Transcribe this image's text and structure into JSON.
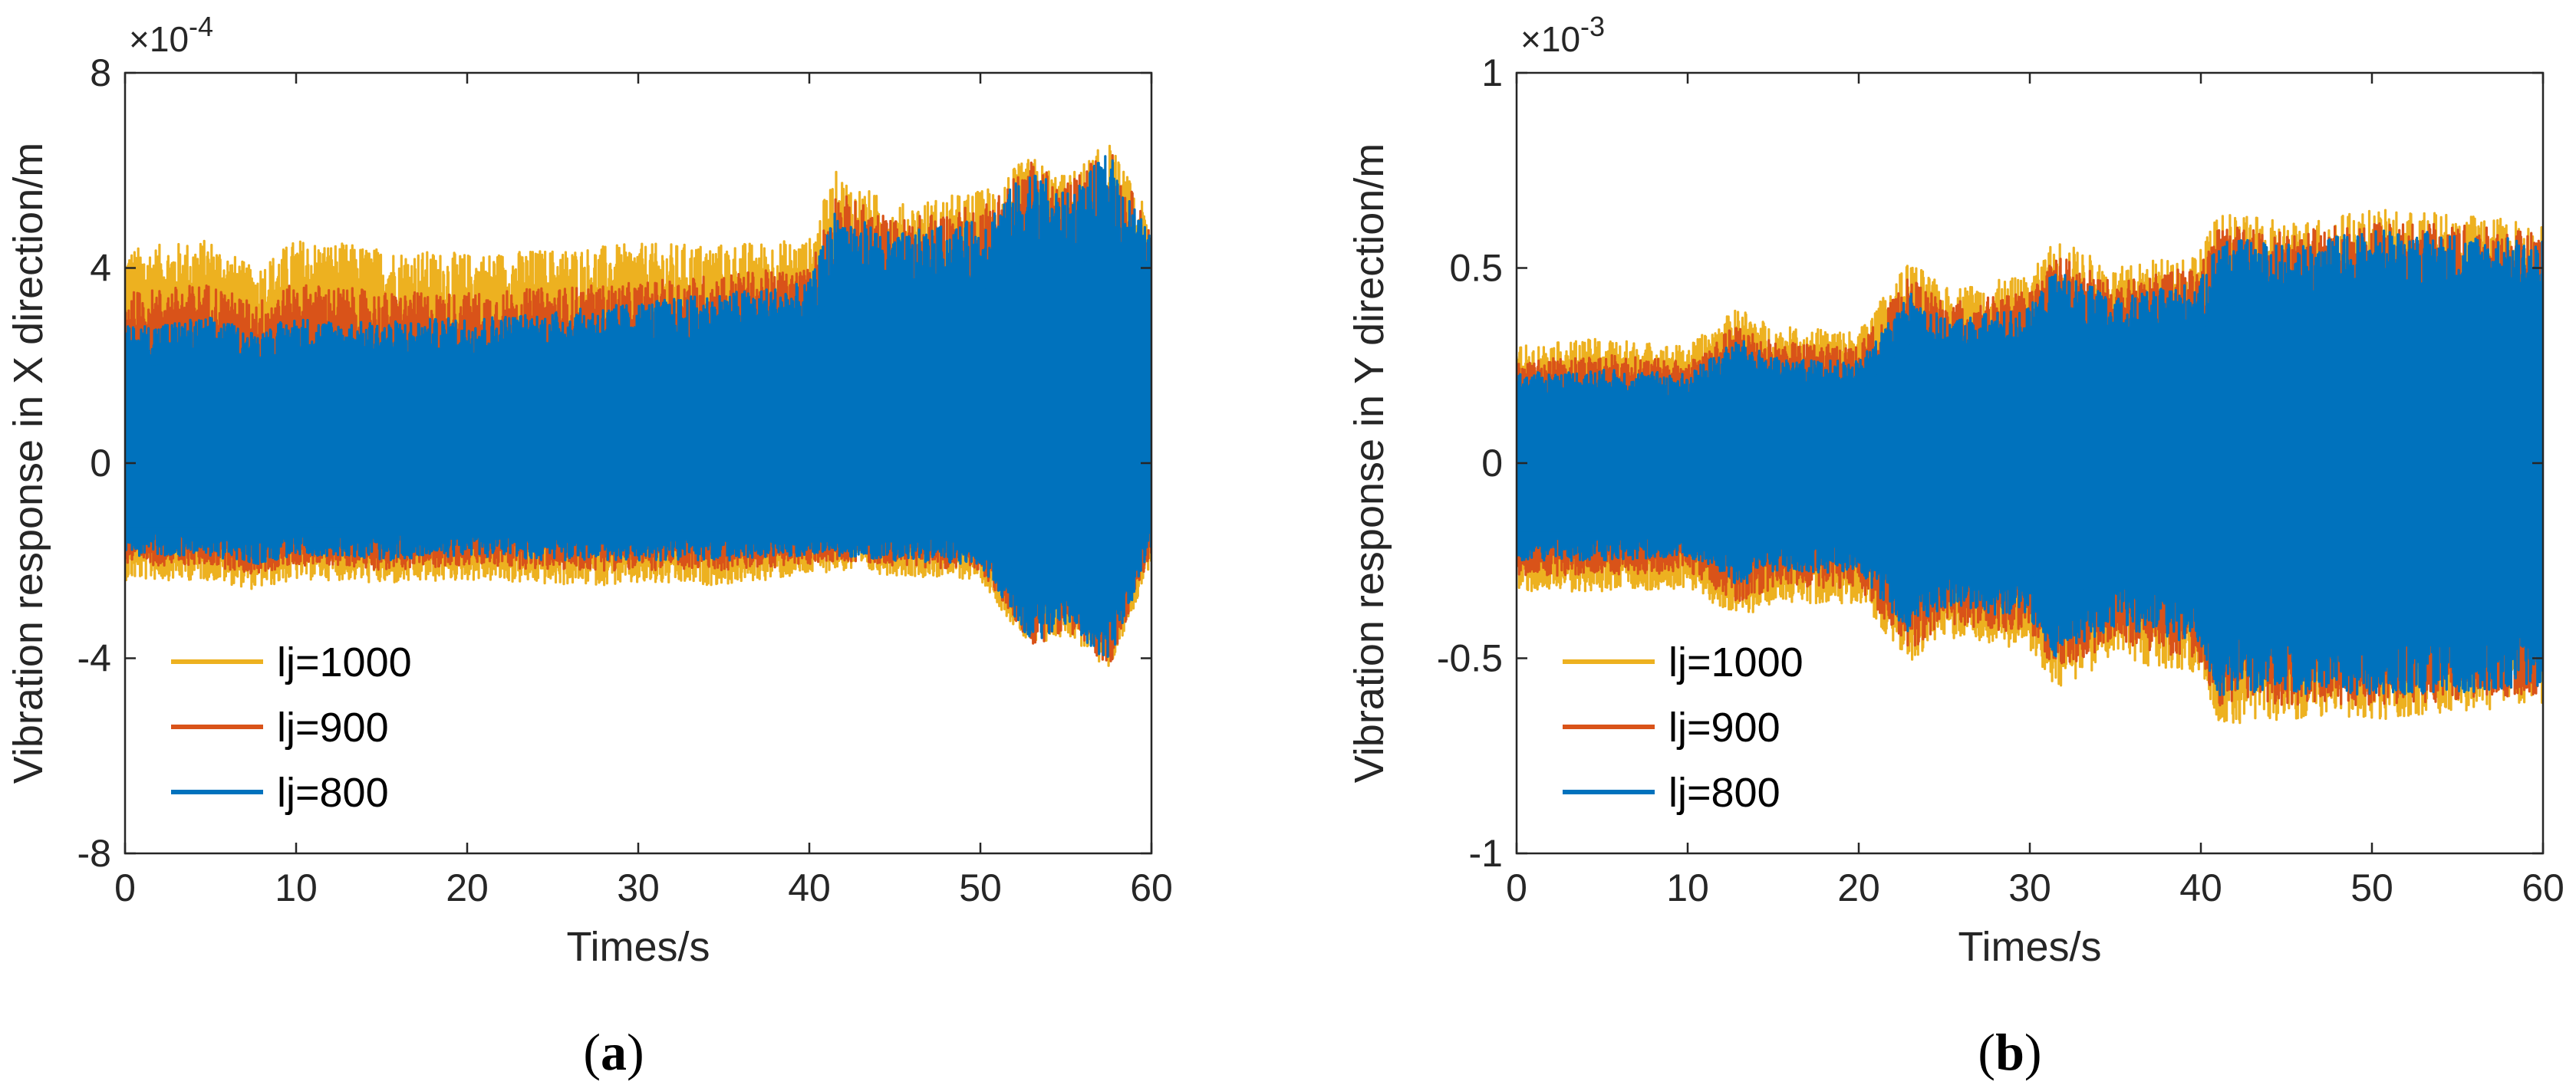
{
  "chart_data": [
    {
      "type": "line",
      "panel_label": "(a)",
      "caption_letter": "a",
      "xlabel": "Times/s",
      "ylabel": "Vibration response in X direction/m",
      "xlim": [
        0,
        60
      ],
      "ylim": [
        -8,
        8
      ],
      "x_ticks": [
        "0",
        "10",
        "20",
        "30",
        "40",
        "50",
        "60"
      ],
      "y_ticks": [
        "-8",
        "-4",
        "0",
        "4",
        "8"
      ],
      "exponent_text": "×10",
      "exponent_power": "-4",
      "legend_position": "bottom-left",
      "series": [
        {
          "name": "lj=1000",
          "color": "#EDB120",
          "envelope_x": [
            0,
            5,
            7.5,
            10,
            13,
            15,
            20,
            25,
            30,
            35,
            40,
            41.5,
            45,
            50,
            53,
            55,
            57.5,
            60
          ],
          "upper": [
            4.4,
            4.6,
            4.0,
            4.6,
            4.5,
            4.4,
            4.3,
            4.4,
            4.5,
            4.5,
            4.6,
            6.0,
            5.3,
            5.6,
            6.3,
            5.9,
            6.6,
            5.0
          ],
          "lower": [
            -2.4,
            -2.4,
            -2.6,
            -2.4,
            -2.4,
            -2.5,
            -2.4,
            -2.5,
            -2.5,
            -2.5,
            -2.3,
            -2.2,
            -2.3,
            -2.4,
            -3.9,
            -3.5,
            -4.3,
            -2.0
          ]
        },
        {
          "name": "lj=900",
          "color": "#D95319",
          "envelope_x": [
            0,
            5,
            7.5,
            10,
            13,
            15,
            20,
            25,
            30,
            35,
            40,
            41.5,
            45,
            50,
            53,
            55,
            57.5,
            60
          ],
          "upper": [
            3.5,
            3.7,
            3.3,
            3.7,
            3.6,
            3.5,
            3.5,
            3.6,
            3.7,
            3.9,
            4.0,
            5.6,
            5.0,
            5.3,
            6.2,
            5.7,
            6.5,
            4.8
          ],
          "lower": [
            -2.1,
            -2.1,
            -2.3,
            -2.1,
            -2.1,
            -2.2,
            -2.1,
            -2.2,
            -2.2,
            -2.2,
            -2.1,
            -2.0,
            -2.1,
            -2.2,
            -3.8,
            -3.4,
            -4.2,
            -1.8
          ]
        },
        {
          "name": "lj=800",
          "color": "#0072BD",
          "envelope_x": [
            0,
            5,
            7.5,
            10,
            13,
            15,
            20,
            25,
            30,
            35,
            40,
            41.5,
            45,
            50,
            53,
            55,
            57.5,
            60
          ],
          "upper": [
            2.8,
            3.0,
            2.7,
            3.0,
            2.9,
            2.9,
            3.0,
            3.1,
            3.3,
            3.5,
            3.7,
            5.2,
            4.7,
            5.0,
            6.1,
            5.5,
            6.4,
            4.6
          ],
          "lower": [
            -1.9,
            -1.9,
            -2.1,
            -1.9,
            -1.9,
            -2.0,
            -1.9,
            -2.0,
            -2.0,
            -2.0,
            -1.9,
            -1.9,
            -2.0,
            -2.1,
            -3.7,
            -3.3,
            -4.1,
            -1.7
          ]
        }
      ]
    },
    {
      "type": "line",
      "panel_label": "(b)",
      "caption_letter": "b",
      "xlabel": "Times/s",
      "ylabel": "Vibration response in Y direction/m",
      "xlim": [
        0,
        60
      ],
      "ylim": [
        -1,
        1
      ],
      "x_ticks": [
        "0",
        "10",
        "20",
        "30",
        "40",
        "50",
        "60"
      ],
      "y_ticks": [
        "-1",
        "-0.5",
        "0",
        "0.5",
        "1"
      ],
      "exponent_text": "×10",
      "exponent_power": "-3",
      "legend_position": "bottom-left",
      "series": [
        {
          "name": "lj=1000",
          "color": "#EDB120",
          "envelope_x": [
            0,
            5,
            10,
            13,
            15,
            20,
            23,
            25,
            30,
            31.5,
            35,
            40,
            41,
            45,
            50,
            55,
            60
          ],
          "upper": [
            0.3,
            0.32,
            0.3,
            0.4,
            0.35,
            0.34,
            0.52,
            0.45,
            0.48,
            0.58,
            0.5,
            0.55,
            0.64,
            0.62,
            0.65,
            0.64,
            0.62
          ],
          "lower": [
            -0.33,
            -0.33,
            -0.32,
            -0.4,
            -0.36,
            -0.36,
            -0.52,
            -0.45,
            -0.48,
            -0.58,
            -0.5,
            -0.55,
            -0.67,
            -0.66,
            -0.66,
            -0.64,
            -0.62
          ]
        },
        {
          "name": "lj=900",
          "color": "#D95319",
          "envelope_x": [
            0,
            5,
            10,
            13,
            15,
            20,
            23,
            25,
            30,
            31.5,
            35,
            40,
            41,
            45,
            50,
            55,
            60
          ],
          "upper": [
            0.26,
            0.28,
            0.26,
            0.36,
            0.31,
            0.3,
            0.48,
            0.41,
            0.44,
            0.54,
            0.46,
            0.51,
            0.61,
            0.59,
            0.62,
            0.61,
            0.59
          ],
          "lower": [
            -0.29,
            -0.29,
            -0.28,
            -0.36,
            -0.32,
            -0.32,
            -0.48,
            -0.41,
            -0.44,
            -0.54,
            -0.46,
            -0.51,
            -0.63,
            -0.62,
            -0.62,
            -0.61,
            -0.59
          ]
        },
        {
          "name": "lj=800",
          "color": "#0072BD",
          "envelope_x": [
            0,
            5,
            10,
            13,
            15,
            20,
            23,
            25,
            30,
            31.5,
            35,
            40,
            41,
            45,
            50,
            55,
            60
          ],
          "upper": [
            0.23,
            0.24,
            0.23,
            0.32,
            0.27,
            0.26,
            0.44,
            0.37,
            0.4,
            0.5,
            0.42,
            0.47,
            0.58,
            0.56,
            0.6,
            0.59,
            0.57
          ],
          "lower": [
            -0.25,
            -0.25,
            -0.24,
            -0.32,
            -0.28,
            -0.28,
            -0.44,
            -0.37,
            -0.4,
            -0.5,
            -0.42,
            -0.47,
            -0.6,
            -0.59,
            -0.6,
            -0.59,
            -0.57
          ]
        }
      ]
    }
  ]
}
